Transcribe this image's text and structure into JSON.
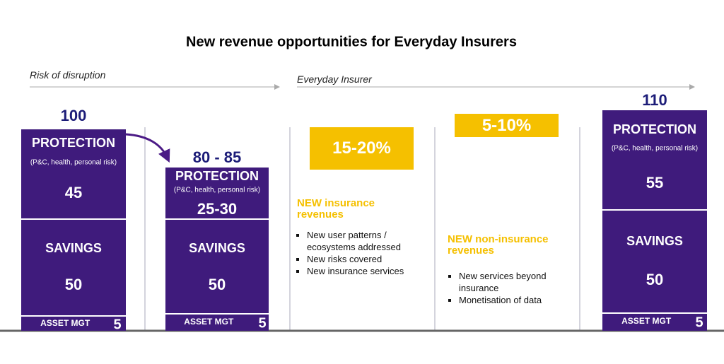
{
  "title": "New revenue opportunities for Everyday Insurers",
  "left_label": "Risk of disruption",
  "right_label": "Everyday Insurer",
  "columns": [
    {
      "total": 100,
      "protection": {
        "label": "PROTECTION",
        "subtitle": "(P&C, health, personal risk)",
        "value": 45
      },
      "savings": {
        "label": "SAVINGS",
        "value": 50
      },
      "asset": {
        "label": "ASSET MGT",
        "value": 5
      }
    },
    {
      "total": "80 - 85",
      "protection": {
        "label": "PROTECTION",
        "subtitle": "(P&C, health, personal risk)",
        "value": "25-30"
      },
      "savings": {
        "label": "SAVINGS",
        "value": 50
      },
      "asset": {
        "label": "ASSET MGT",
        "value": 5
      }
    },
    {
      "total": 110,
      "protection": {
        "label": "PROTECTION",
        "subtitle": "(P&C, health, personal risk)",
        "value": 55
      },
      "savings": {
        "label": "SAVINGS",
        "value": 50
      },
      "asset": {
        "label": "ASSET MGT",
        "value": 5
      }
    }
  ],
  "opportunities": [
    {
      "value": "15-20%",
      "heading": "NEW insurance revenues",
      "bullets": [
        "New user patterns / ecosystems addressed",
        "New risks covered",
        "New insurance services"
      ]
    },
    {
      "value": "5-10%",
      "heading": "NEW non-insurance revenues",
      "bullets": [
        "New services beyond insurance",
        "Monetisation of data"
      ]
    }
  ]
}
